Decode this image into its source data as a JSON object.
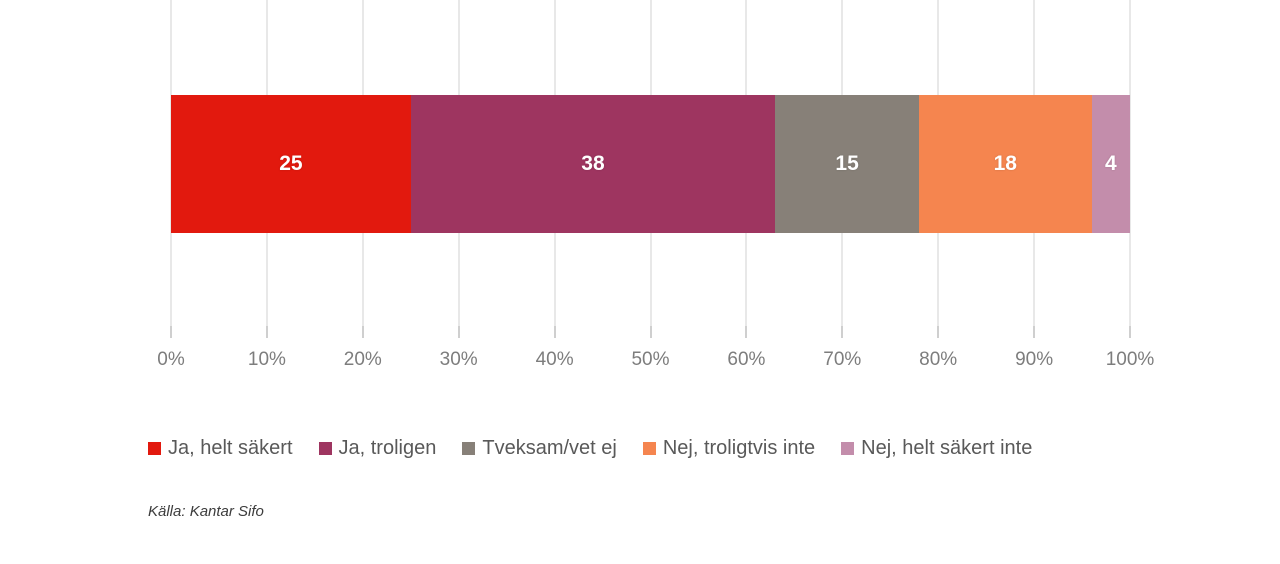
{
  "chart_data": {
    "type": "bar",
    "orientation": "horizontal-stacked",
    "title": "",
    "xlabel": "",
    "ylabel": "",
    "xlim": [
      0,
      100
    ],
    "grid": true,
    "legend_position": "bottom",
    "categories": [
      "Ja, helt säkert",
      "Ja, troligen",
      "Tveksam/vet ej",
      "Nej, troligtvis inte",
      "Nej, helt säkert inte"
    ],
    "values": [
      25,
      38,
      15,
      18,
      4
    ],
    "colors": [
      "#e2190e",
      "#9e3560",
      "#878078",
      "#f5854f",
      "#c38dab"
    ],
    "value_label_color": "#ffffff",
    "x_ticks": [
      "0%",
      "10%",
      "20%",
      "30%",
      "40%",
      "50%",
      "60%",
      "70%",
      "80%",
      "90%",
      "100%"
    ],
    "source": "Källa: Kantar Sifo"
  }
}
